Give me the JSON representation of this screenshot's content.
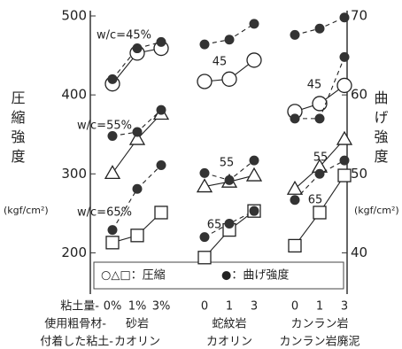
{
  "chart_data": {
    "type": "line",
    "ylabel": "圧縮強度",
    "ylabel_unit": "(kgf/cm²)",
    "y2label": "曲げ強度",
    "y2label_unit": "(kgf/cm²)",
    "ylim": [
      150,
      500
    ],
    "yticks": [
      200,
      300,
      400,
      500
    ],
    "y2lim": [
      35,
      70
    ],
    "y2ticks": [
      40,
      50,
      60,
      70
    ],
    "legend": {
      "compressive": "○△□：圧縮",
      "flexural": "●：曲げ強度"
    },
    "row_labels": [
      "粘土量-",
      "使用粗骨材-",
      "付着した粘土-"
    ],
    "color": "#222",
    "groups": [
      {
        "aggregate": "砂岩",
        "clay": "カオリン",
        "categories": [
          "0%",
          "1%",
          "3%"
        ],
        "series": [
          {
            "label": "w/c=45%",
            "marker": "circle",
            "compressive": [
              414,
              453,
              459
            ],
            "flexural": [
              62,
              65.9,
              66.7
            ]
          },
          {
            "label": "w/c=55%",
            "marker": "triangle",
            "compressive": [
              301,
              344,
              376
            ],
            "flexural": [
              54.8,
              55.3,
              58.1
            ]
          },
          {
            "label": "w/c=65%",
            "marker": "square",
            "compressive": [
              213,
              222,
              251
            ],
            "flexural": [
              42.9,
              48.1,
              51.1
            ]
          }
        ]
      },
      {
        "aggregate": "蛇紋岩",
        "clay": "カオリン",
        "categories": [
          "0",
          "1",
          "3"
        ],
        "series": [
          {
            "label": "45",
            "marker": "circle",
            "compressive": [
              417,
              420,
              444
            ],
            "flexural": [
              66.4,
              67,
              69
            ]
          },
          {
            "label": "55",
            "marker": "triangle",
            "compressive": [
              284,
              290,
              298
            ],
            "flexural": [
              50.1,
              49.2,
              51.7
            ]
          },
          {
            "label": "65",
            "marker": "square",
            "compressive": [
              194,
              229,
              253
            ],
            "flexural": [
              42,
              43.7,
              45.3
            ]
          }
        ]
      },
      {
        "aggregate": "カンラン岩",
        "clay": "カンラン岩廃泥",
        "categories": [
          "0",
          "1",
          "3"
        ],
        "series": [
          {
            "label": "45",
            "marker": "circle",
            "compressive": [
              379,
              389,
              412
            ],
            "flexural": [
              67.6,
              68.4,
              69.8
            ]
          },
          {
            "label": "55",
            "marker": "triangle",
            "compressive": [
              281,
              309,
              344
            ],
            "flexural": [
              57,
              57,
              64.8
            ]
          },
          {
            "label": "65",
            "marker": "square",
            "compressive": [
              209,
              251,
              298
            ],
            "flexural": [
              46.7,
              50,
              51.7
            ]
          }
        ]
      }
    ]
  }
}
